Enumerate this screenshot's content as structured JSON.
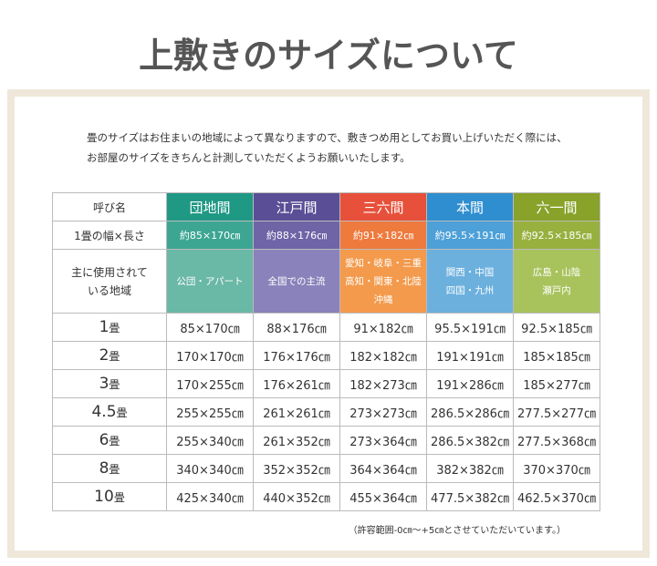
{
  "header": {
    "title": "上敷きのサイズについて"
  },
  "intro": [
    "畳のサイズはお住まいの地域によって異なりますので、敷きつめ用としてお買い上げいただく際には、",
    "お部屋のサイズをきちんと計測していただくようお願いいたします。"
  ],
  "table": {
    "columns": [
      "呼び名",
      "団地間",
      "江戸間",
      "三六間",
      "本間",
      "六一間"
    ],
    "width_row": [
      "1畳の幅×長さ",
      "約85×170㎝",
      "約88×176㎝",
      "約91×182㎝",
      "約95.5×191㎝",
      "約92.5×185㎝"
    ],
    "region_row": [
      [
        "主に使用されて",
        "いる地域"
      ],
      [
        "公団・アパート"
      ],
      [
        "全国での主流"
      ],
      [
        "愛知・岐阜・三重",
        "高知・関東・北陸",
        "沖縄"
      ],
      [
        "関西・中国",
        "四国・九州"
      ],
      [
        "広島・山陰",
        "瀬戸内"
      ]
    ],
    "rows": [
      {
        "num": "1",
        "unit": "畳",
        "cells": [
          "85×170㎝",
          "88×176㎝",
          "91×182㎝",
          "95.5×191㎝",
          "92.5×185㎝"
        ]
      },
      {
        "num": "2",
        "unit": "畳",
        "cells": [
          "170×170㎝",
          "176×176㎝",
          "182×182㎝",
          "191×191㎝",
          "185×185㎝"
        ]
      },
      {
        "num": "3",
        "unit": "畳",
        "cells": [
          "170×255㎝",
          "176×261㎝",
          "182×273㎝",
          "191×286㎝",
          "185×277㎝"
        ]
      },
      {
        "num": "4.5",
        "unit": "畳",
        "cells": [
          "255×255㎝",
          "261×261㎝",
          "273×273㎝",
          "286.5×286㎝",
          "277.5×277㎝"
        ]
      },
      {
        "num": "6",
        "unit": "畳",
        "cells": [
          "255×340㎝",
          "261×352㎝",
          "273×364㎝",
          "286.5×382㎝",
          "277.5×368㎝"
        ]
      },
      {
        "num": "8",
        "unit": "畳",
        "cells": [
          "340×340㎝",
          "352×352㎝",
          "364×364㎝",
          "382×382㎝",
          "370×370㎝"
        ]
      },
      {
        "num": "10",
        "unit": "畳",
        "cells": [
          "425×340㎝",
          "440×352㎝",
          "455×364㎝",
          "477.5×382㎝",
          "462.5×370㎝"
        ]
      }
    ]
  },
  "footnote": "（許容範囲-0㎝～+5㎝とさせていただいています。）"
}
